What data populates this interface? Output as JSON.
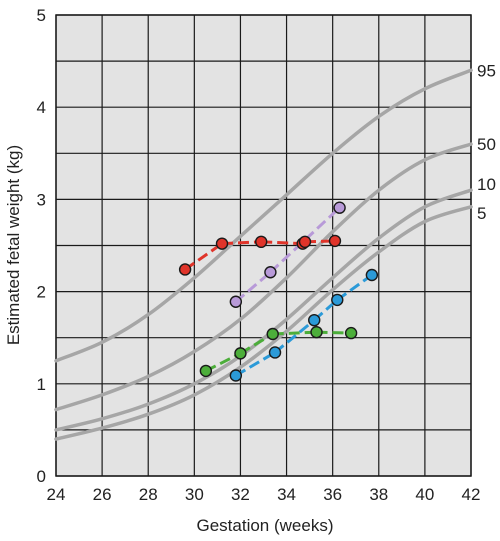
{
  "chart_data": {
    "type": "line",
    "title": "",
    "xlabel": "Gestation (weeks)",
    "ylabel": "Estimated fetal weight (kg)",
    "xlim": [
      24,
      42
    ],
    "ylim": [
      0,
      5
    ],
    "xticks": [
      "24",
      "26",
      "28",
      "30",
      "32",
      "34",
      "36",
      "38",
      "40",
      "42"
    ],
    "yticks": [
      "0",
      "1",
      "2",
      "3",
      "4",
      "5"
    ],
    "grid": true,
    "centile_curves": [
      {
        "label": "95",
        "points": [
          [
            24,
            1.25
          ],
          [
            26,
            1.45
          ],
          [
            28,
            1.75
          ],
          [
            30,
            2.15
          ],
          [
            32,
            2.6
          ],
          [
            34,
            3.05
          ],
          [
            36,
            3.5
          ],
          [
            38,
            3.9
          ],
          [
            40,
            4.2
          ],
          [
            42,
            4.4
          ]
        ]
      },
      {
        "label": "50",
        "points": [
          [
            24,
            0.72
          ],
          [
            26,
            0.88
          ],
          [
            28,
            1.08
          ],
          [
            30,
            1.35
          ],
          [
            32,
            1.7
          ],
          [
            34,
            2.15
          ],
          [
            36,
            2.65
          ],
          [
            38,
            3.1
          ],
          [
            40,
            3.43
          ],
          [
            42,
            3.6
          ]
        ]
      },
      {
        "label": "10",
        "points": [
          [
            24,
            0.5
          ],
          [
            26,
            0.62
          ],
          [
            28,
            0.78
          ],
          [
            30,
            1.0
          ],
          [
            32,
            1.3
          ],
          [
            34,
            1.7
          ],
          [
            36,
            2.15
          ],
          [
            38,
            2.58
          ],
          [
            40,
            2.92
          ],
          [
            42,
            3.1
          ]
        ]
      },
      {
        "label": "5",
        "points": [
          [
            24,
            0.4
          ],
          [
            26,
            0.52
          ],
          [
            28,
            0.67
          ],
          [
            30,
            0.88
          ],
          [
            32,
            1.18
          ],
          [
            34,
            1.57
          ],
          [
            36,
            2.02
          ],
          [
            38,
            2.43
          ],
          [
            40,
            2.76
          ],
          [
            42,
            2.92
          ]
        ]
      }
    ],
    "series": [
      {
        "color": "#e0342a",
        "points": [
          [
            29.6,
            2.24
          ],
          [
            31.2,
            2.52
          ],
          [
            32.9,
            2.54
          ],
          [
            34.7,
            2.52
          ],
          [
            34.8,
            2.54
          ],
          [
            36.1,
            2.55
          ]
        ]
      },
      {
        "color": "#b89ad8",
        "points": [
          [
            31.8,
            1.89
          ],
          [
            33.3,
            2.21
          ],
          [
            36.3,
            2.91
          ]
        ]
      },
      {
        "color": "#2b9ad8",
        "points": [
          [
            31.8,
            1.09
          ],
          [
            33.5,
            1.34
          ],
          [
            35.2,
            1.69
          ],
          [
            36.2,
            1.91
          ],
          [
            37.7,
            2.18
          ]
        ]
      },
      {
        "color": "#4cae3a",
        "points": [
          [
            30.5,
            1.14
          ],
          [
            32.0,
            1.33
          ],
          [
            33.4,
            1.54
          ],
          [
            35.3,
            1.56
          ],
          [
            36.8,
            1.55
          ]
        ]
      }
    ],
    "colors": {
      "plot_background": "#e3e3e3",
      "grid": "#1a1a1a",
      "centile": "#a6a6a6"
    }
  }
}
